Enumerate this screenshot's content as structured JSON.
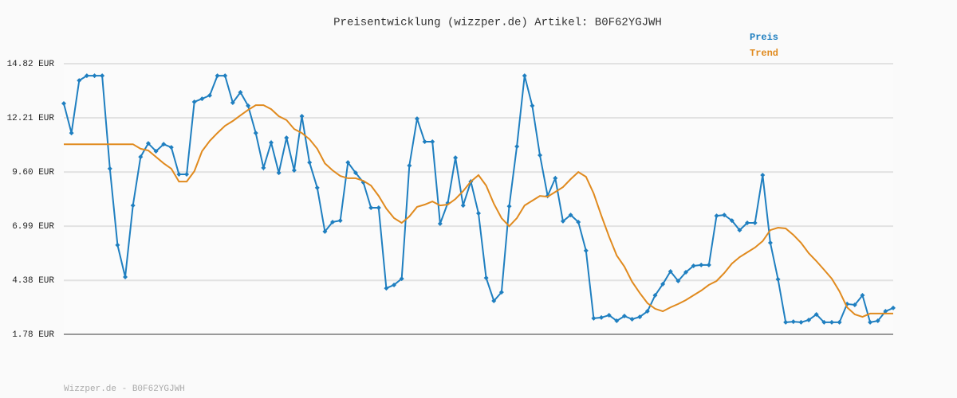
{
  "chart_data": {
    "type": "line",
    "title": "Preisentwicklung (wizzper.de) Artikel: B0F62YGJWH",
    "footer": "Wizzper.de - B0F62YGJWH",
    "legend_position": "top-right",
    "grid": true,
    "categories": [
      null,
      null,
      null,
      null,
      null,
      null,
      null,
      null,
      null,
      null,
      null,
      null,
      null,
      null,
      null,
      null,
      null,
      null,
      null,
      null,
      null,
      null,
      null,
      null,
      null,
      null,
      null,
      null,
      null,
      null,
      null,
      null,
      null,
      null,
      null,
      null,
      null,
      null,
      null,
      null,
      null,
      null,
      null,
      null,
      null,
      null,
      null,
      null,
      null,
      null,
      null,
      null,
      null,
      null,
      null,
      null,
      null,
      null,
      null,
      null,
      null,
      null,
      null,
      null,
      null,
      null,
      null,
      null,
      null,
      null,
      null,
      null,
      null,
      null,
      null,
      null,
      null,
      null,
      null,
      null,
      null,
      null,
      null,
      null,
      null,
      null,
      null,
      null,
      null,
      null,
      null,
      null,
      null,
      null,
      null,
      null,
      null,
      null,
      null,
      null,
      null,
      null,
      null,
      null,
      null,
      null,
      null,
      null,
      null
    ],
    "ylim": [
      1.78,
      14.82
    ],
    "yticks": [
      {
        "value": 1.78,
        "label": "1.78 EUR"
      },
      {
        "value": 4.38,
        "label": "4.38 EUR"
      },
      {
        "value": 6.99,
        "label": "6.99 EUR"
      },
      {
        "value": 9.6,
        "label": "9.60 EUR"
      },
      {
        "value": 12.21,
        "label": "12.21 EUR"
      },
      {
        "value": 14.82,
        "label": "14.82 EUR"
      }
    ],
    "series": [
      {
        "name": "Preis",
        "color": "#1f7fc0",
        "markers": true,
        "values": [
          12.9,
          11.48,
          14.01,
          14.24,
          14.24,
          14.24,
          9.76,
          6.08,
          4.54,
          7.99,
          10.33,
          10.98,
          10.6,
          10.94,
          10.79,
          9.49,
          9.49,
          12.98,
          13.13,
          13.29,
          14.24,
          14.24,
          12.94,
          13.44,
          12.79,
          11.48,
          9.8,
          11.02,
          9.56,
          11.25,
          9.68,
          12.29,
          10.06,
          8.84,
          6.73,
          7.19,
          7.26,
          10.06,
          9.56,
          9.1,
          7.88,
          7.88,
          4.0,
          4.16,
          4.46,
          9.91,
          12.17,
          11.06,
          11.06,
          7.11,
          8.11,
          10.29,
          7.99,
          9.14,
          7.61,
          4.5,
          3.39,
          3.81,
          7.95,
          10.83,
          14.24,
          12.79,
          10.41,
          8.45,
          9.3,
          7.23,
          7.53,
          7.19,
          5.81,
          2.55,
          2.59,
          2.7,
          2.43,
          2.66,
          2.51,
          2.62,
          2.89,
          3.66,
          4.2,
          4.81,
          4.35,
          4.77,
          5.08,
          5.12,
          5.12,
          7.49,
          7.53,
          7.26,
          6.8,
          7.15,
          7.15,
          9.45,
          6.19,
          4.43,
          2.36,
          2.39,
          2.36,
          2.47,
          2.74,
          2.36,
          2.36,
          2.36,
          3.24,
          3.2,
          3.66,
          2.36,
          2.43,
          2.89,
          3.05
        ]
      },
      {
        "name": "Trend",
        "color": "#e08a1e",
        "markers": false,
        "values": [
          10.94,
          10.94,
          10.94,
          10.94,
          10.94,
          10.94,
          10.94,
          10.94,
          10.94,
          10.94,
          10.72,
          10.64,
          10.33,
          10.02,
          9.76,
          9.14,
          9.14,
          9.64,
          10.6,
          11.1,
          11.48,
          11.83,
          12.06,
          12.33,
          12.59,
          12.82,
          12.82,
          12.63,
          12.29,
          12.1,
          11.67,
          11.48,
          11.18,
          10.72,
          10.02,
          9.68,
          9.41,
          9.3,
          9.3,
          9.18,
          8.95,
          8.45,
          7.84,
          7.38,
          7.15,
          7.46,
          7.92,
          8.03,
          8.18,
          7.99,
          8.03,
          8.3,
          8.68,
          9.14,
          9.45,
          8.95,
          8.07,
          7.38,
          6.99,
          7.38,
          7.99,
          8.22,
          8.45,
          8.41,
          8.64,
          8.87,
          9.26,
          9.6,
          9.37,
          8.57,
          7.49,
          6.49,
          5.58,
          5.04,
          4.31,
          3.77,
          3.28,
          3.01,
          2.89,
          3.08,
          3.24,
          3.43,
          3.66,
          3.89,
          4.16,
          4.35,
          4.73,
          5.19,
          5.5,
          5.73,
          5.96,
          6.27,
          6.8,
          6.92,
          6.88,
          6.57,
          6.19,
          5.69,
          5.31,
          4.89,
          4.46,
          3.85,
          3.08,
          2.74,
          2.62,
          2.78,
          2.78,
          2.78,
          2.78
        ]
      }
    ]
  }
}
